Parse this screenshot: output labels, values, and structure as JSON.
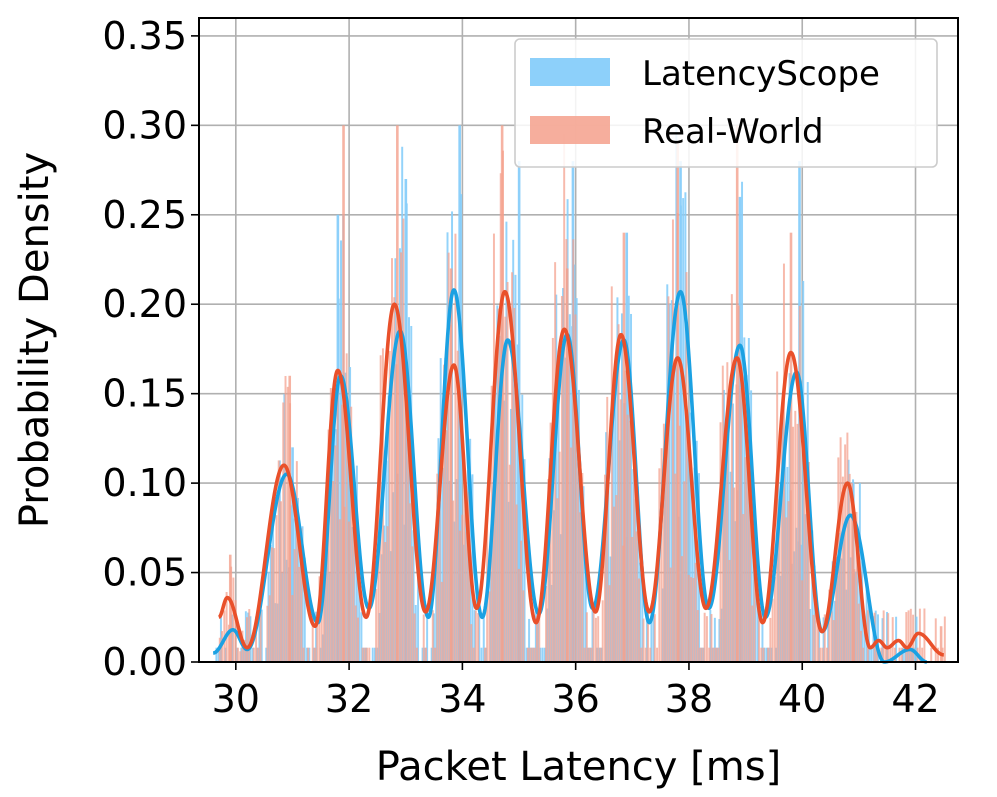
{
  "chart_data": {
    "type": "histogram",
    "xlabel": "Packet Latency [ms]",
    "ylabel": "Probability Density",
    "xlim": [
      29.35,
      42.75
    ],
    "ylim": [
      0,
      0.36
    ],
    "xticks": [
      30,
      32,
      34,
      36,
      38,
      40,
      42
    ],
    "xtick_labels": [
      "30",
      "32",
      "34",
      "36",
      "38",
      "40",
      "42"
    ],
    "yticks": [
      0.0,
      0.05,
      0.1,
      0.15,
      0.2,
      0.25,
      0.3,
      0.35
    ],
    "ytick_labels": [
      "0.00",
      "0.05",
      "0.10",
      "0.15",
      "0.20",
      "0.25",
      "0.30",
      "0.35"
    ],
    "grid": true,
    "legend_position": "top-right",
    "series": [
      {
        "name": "LatencyScope",
        "bar_color": "#87CEFA",
        "line_color": "#1BA1E2",
        "kde_peaks": [
          {
            "x": 29.95,
            "y": 0.018
          },
          {
            "x": 30.9,
            "y": 0.105
          },
          {
            "x": 31.85,
            "y": 0.16
          },
          {
            "x": 32.9,
            "y": 0.185
          },
          {
            "x": 33.85,
            "y": 0.208
          },
          {
            "x": 34.8,
            "y": 0.18
          },
          {
            "x": 35.85,
            "y": 0.183
          },
          {
            "x": 36.85,
            "y": 0.18
          },
          {
            "x": 37.85,
            "y": 0.207
          },
          {
            "x": 38.9,
            "y": 0.177
          },
          {
            "x": 39.9,
            "y": 0.162
          },
          {
            "x": 40.85,
            "y": 0.082
          },
          {
            "x": 41.9,
            "y": 0.007
          }
        ],
        "kde_troughs": [
          {
            "x": 29.6,
            "y": 0.005
          },
          {
            "x": 30.2,
            "y": 0.007
          },
          {
            "x": 31.45,
            "y": 0.022
          },
          {
            "x": 32.35,
            "y": 0.03
          },
          {
            "x": 33.4,
            "y": 0.025
          },
          {
            "x": 34.35,
            "y": 0.025
          },
          {
            "x": 35.35,
            "y": 0.027
          },
          {
            "x": 36.3,
            "y": 0.03
          },
          {
            "x": 37.3,
            "y": 0.022
          },
          {
            "x": 38.35,
            "y": 0.03
          },
          {
            "x": 39.35,
            "y": 0.025
          },
          {
            "x": 40.35,
            "y": 0.017
          },
          {
            "x": 41.45,
            "y": 0.0
          },
          {
            "x": 42.2,
            "y": 0.0
          }
        ],
        "bar_peaks": [
          {
            "x": 31.0,
            "y": 0.12
          },
          {
            "x": 31.8,
            "y": 0.25
          },
          {
            "x": 33.0,
            "y": 0.27
          },
          {
            "x": 33.95,
            "y": 0.3
          },
          {
            "x": 35.0,
            "y": 0.28
          },
          {
            "x": 35.95,
            "y": 0.28
          },
          {
            "x": 36.9,
            "y": 0.24
          },
          {
            "x": 37.85,
            "y": 0.28
          },
          {
            "x": 38.9,
            "y": 0.26
          },
          {
            "x": 39.95,
            "y": 0.28
          },
          {
            "x": 40.9,
            "y": 0.1
          }
        ]
      },
      {
        "name": "Real-World",
        "bar_color": "#F4A08C",
        "line_color": "#E9502A",
        "kde_peaks": [
          {
            "x": 29.85,
            "y": 0.036
          },
          {
            "x": 30.85,
            "y": 0.11
          },
          {
            "x": 31.8,
            "y": 0.163
          },
          {
            "x": 32.8,
            "y": 0.2
          },
          {
            "x": 33.85,
            "y": 0.166
          },
          {
            "x": 34.75,
            "y": 0.207
          },
          {
            "x": 35.8,
            "y": 0.186
          },
          {
            "x": 36.8,
            "y": 0.183
          },
          {
            "x": 37.8,
            "y": 0.17
          },
          {
            "x": 38.85,
            "y": 0.17
          },
          {
            "x": 39.8,
            "y": 0.173
          },
          {
            "x": 40.8,
            "y": 0.1
          },
          {
            "x": 41.35,
            "y": 0.012
          },
          {
            "x": 41.7,
            "y": 0.012
          },
          {
            "x": 42.05,
            "y": 0.016
          }
        ],
        "kde_troughs": [
          {
            "x": 29.7,
            "y": 0.025
          },
          {
            "x": 30.2,
            "y": 0.008
          },
          {
            "x": 31.4,
            "y": 0.02
          },
          {
            "x": 32.3,
            "y": 0.025
          },
          {
            "x": 33.35,
            "y": 0.028
          },
          {
            "x": 34.25,
            "y": 0.03
          },
          {
            "x": 35.3,
            "y": 0.022
          },
          {
            "x": 36.35,
            "y": 0.028
          },
          {
            "x": 37.3,
            "y": 0.028
          },
          {
            "x": 38.3,
            "y": 0.03
          },
          {
            "x": 39.3,
            "y": 0.022
          },
          {
            "x": 40.35,
            "y": 0.017
          },
          {
            "x": 41.2,
            "y": 0.008
          },
          {
            "x": 41.5,
            "y": 0.008
          },
          {
            "x": 41.85,
            "y": 0.008
          },
          {
            "x": 42.5,
            "y": 0.004
          }
        ],
        "bar_peaks": [
          {
            "x": 29.9,
            "y": 0.06
          },
          {
            "x": 30.95,
            "y": 0.16
          },
          {
            "x": 31.9,
            "y": 0.3
          },
          {
            "x": 32.85,
            "y": 0.3
          },
          {
            "x": 33.8,
            "y": 0.22
          },
          {
            "x": 34.7,
            "y": 0.3
          },
          {
            "x": 35.85,
            "y": 0.22
          },
          {
            "x": 36.85,
            "y": 0.24
          },
          {
            "x": 37.8,
            "y": 0.29
          },
          {
            "x": 38.85,
            "y": 0.3
          },
          {
            "x": 39.8,
            "y": 0.24
          },
          {
            "x": 40.9,
            "y": 0.08
          },
          {
            "x": 42.45,
            "y": 0.02
          }
        ]
      }
    ]
  }
}
